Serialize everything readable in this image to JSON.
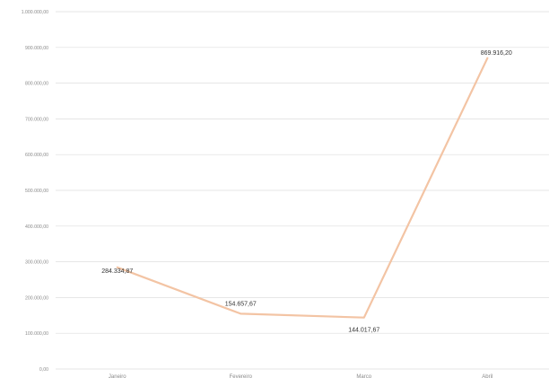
{
  "chart_data": {
    "type": "line",
    "title": "",
    "xlabel": "",
    "ylabel": "",
    "categories": [
      "Janeiro",
      "Fevereiro",
      "Março",
      "Abril"
    ],
    "series": [
      {
        "values": [
          284334.87,
          154657.67,
          144017.67,
          869916.2
        ],
        "labels": [
          "284.334,87",
          "154.657,67",
          "144.017,67",
          "869.916,20"
        ],
        "color": "#f3c4a4"
      }
    ],
    "ylim": [
      0,
      1000000
    ],
    "yticks": [
      0,
      100000,
      200000,
      300000,
      400000,
      500000,
      600000,
      700000,
      800000,
      900000,
      1000000
    ],
    "ytick_labels": [
      "0,00",
      "100.000,00",
      "200.000,00",
      "300.000,00",
      "400.000,00",
      "500.000,00",
      "600.000,00",
      "700.000,00",
      "800.000,00",
      "900.000,00",
      "1.000.000,00"
    ],
    "grid": true,
    "legend": "none",
    "colors": {
      "gridline": "#dedede",
      "axis_text": "#8a8a8a",
      "data_label": "#333333"
    }
  }
}
